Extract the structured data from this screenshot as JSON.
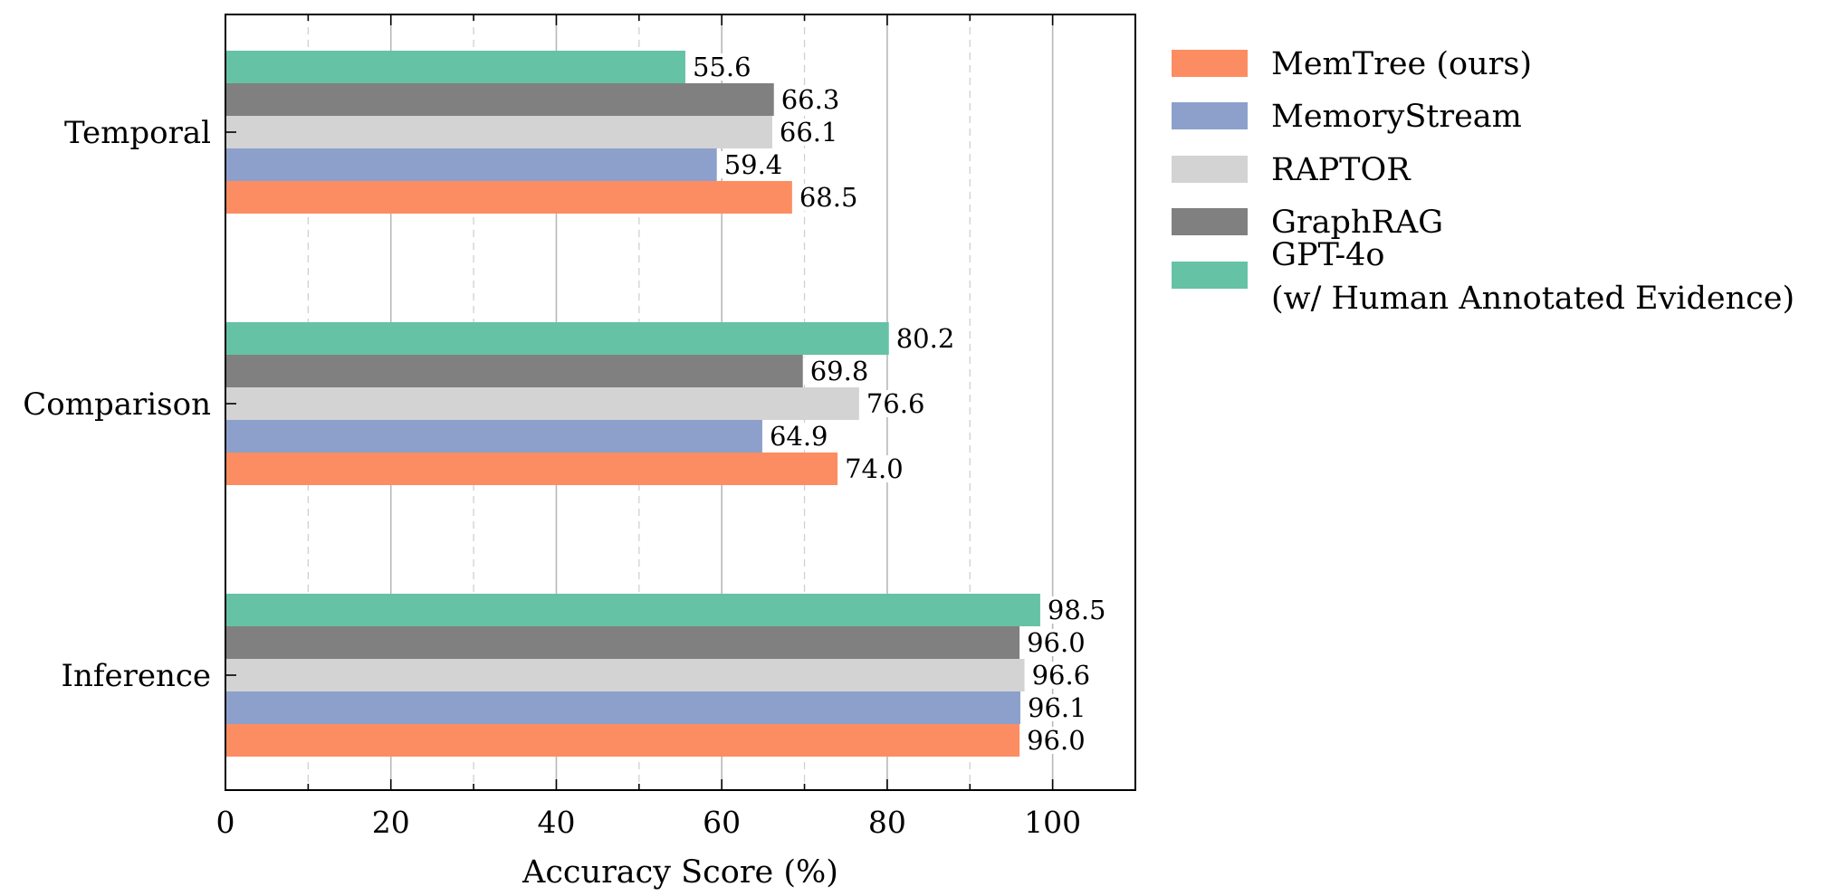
{
  "chart_data": {
    "type": "bar",
    "orientation": "horizontal",
    "xlabel": "Accuracy Score (%)",
    "ylabel": "",
    "title": "",
    "xlim": [
      0,
      110
    ],
    "xticks": [
      "0",
      "20",
      "40",
      "60",
      "80",
      "100"
    ],
    "grid": "vertical gridlines (solid at major ticks, dashed at minor ticks)",
    "legend_position": "outside right, top",
    "categories": [
      "Temporal",
      "Comparison",
      "Inference"
    ],
    "series": [
      {
        "name": "MemTree (ours)",
        "color": "#fc8d62",
        "values": [
          68.5,
          74.0,
          96.0
        ],
        "labels": [
          "68.5",
          "74.0",
          "96.0"
        ]
      },
      {
        "name": "MemoryStream",
        "color": "#8da0cb",
        "values": [
          59.4,
          64.9,
          96.1
        ],
        "labels": [
          "59.4",
          "64.9",
          "96.1"
        ]
      },
      {
        "name": "RAPTOR",
        "color": "#d3d3d3",
        "values": [
          66.1,
          76.6,
          96.6
        ],
        "labels": [
          "66.1",
          "76.6",
          "96.6"
        ]
      },
      {
        "name": "GraphRAG",
        "color": "#808080",
        "values": [
          66.3,
          69.8,
          96.0
        ],
        "labels": [
          "66.3",
          "69.8",
          "96.0"
        ]
      },
      {
        "name": "GPT-4o",
        "name_line2": "(w/ Human Annotated Evidence)",
        "color": "#66c2a5",
        "values": [
          55.6,
          80.2,
          98.5
        ],
        "labels": [
          "55.6",
          "80.2",
          "98.5"
        ]
      }
    ]
  }
}
